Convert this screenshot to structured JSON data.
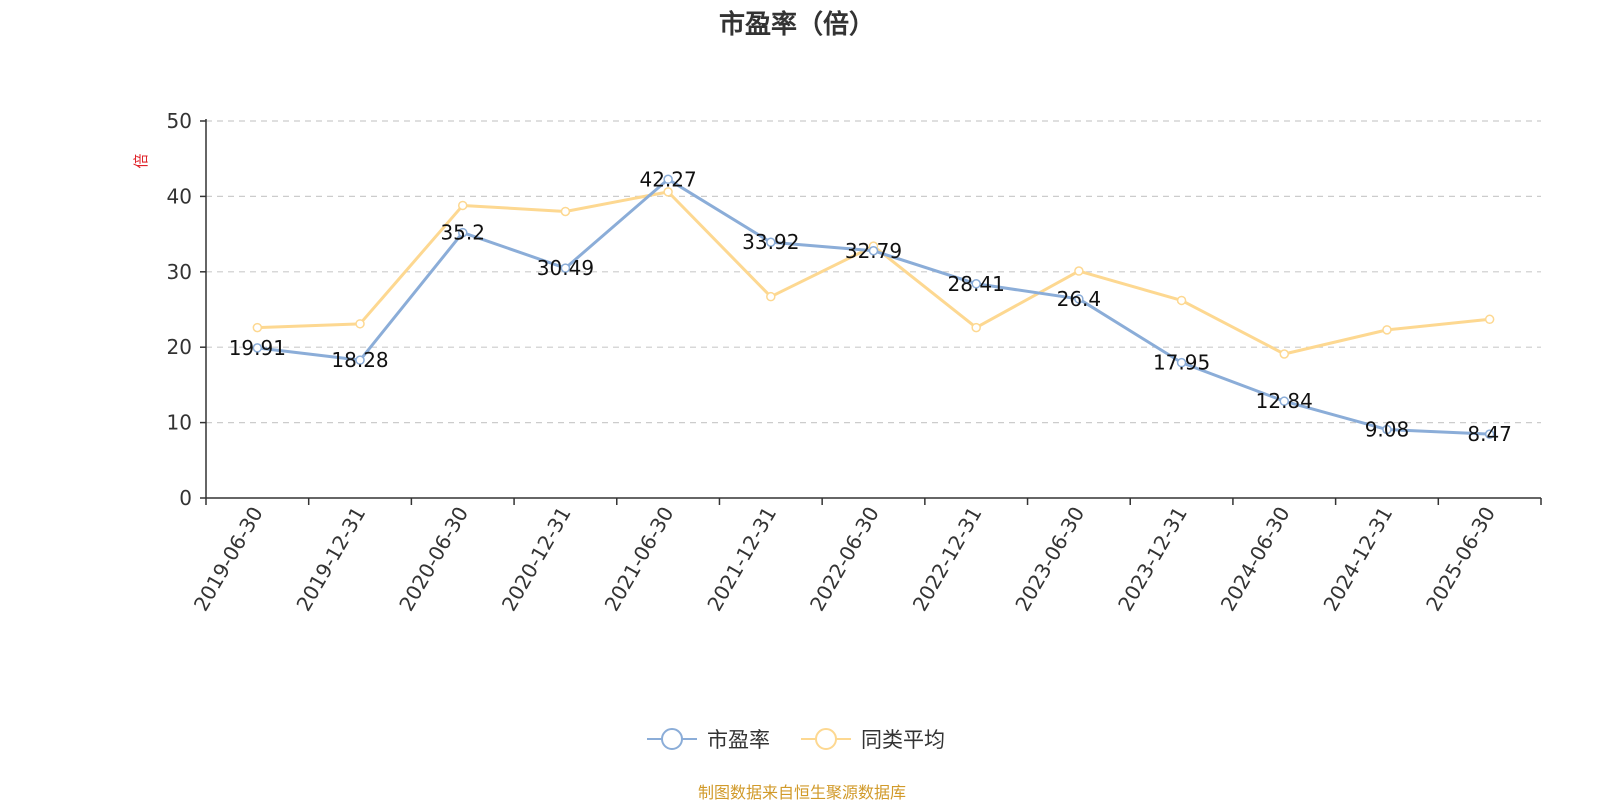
{
  "colors": {
    "pe_line": "#8badd8",
    "avg_line": "#fdd891",
    "grid": "#cccccc",
    "axis": "#333333",
    "unit": "#e0232a",
    "source": "#d19a2a"
  },
  "chart_data": {
    "type": "line",
    "title": "市盈率（倍）",
    "unit_label": "倍",
    "ylim": [
      0,
      50
    ],
    "y_ticks": [
      0,
      10,
      20,
      30,
      40,
      50
    ],
    "grid": true,
    "legend_position": "bottom-center",
    "categories": [
      "2019-06-30",
      "2019-12-31",
      "2020-06-30",
      "2020-12-31",
      "2021-06-30",
      "2021-12-31",
      "2022-06-30",
      "2022-12-31",
      "2023-06-30",
      "2023-12-31",
      "2024-06-30",
      "2024-12-31",
      "2025-06-30"
    ],
    "series": [
      {
        "name": "市盈率",
        "color": "#8badd8",
        "values": [
          19.91,
          18.28,
          35.2,
          30.49,
          42.27,
          33.92,
          32.79,
          28.41,
          26.4,
          17.95,
          12.84,
          9.08,
          8.47
        ],
        "labels": [
          "19.91",
          "18.28",
          "35.2",
          "30.49",
          "42.27",
          "33.92",
          "32.79",
          "28.41",
          "26.4",
          "17.95",
          "12.84",
          "9.08",
          "8.47"
        ]
      },
      {
        "name": "同类平均",
        "color": "#fdd891",
        "values": [
          22.6,
          23.1,
          38.8,
          38.0,
          40.6,
          26.7,
          33.4,
          22.6,
          30.1,
          26.2,
          19.1,
          22.3,
          23.7
        ]
      }
    ]
  },
  "footer": {
    "source": "制图数据来自恒生聚源数据库"
  }
}
